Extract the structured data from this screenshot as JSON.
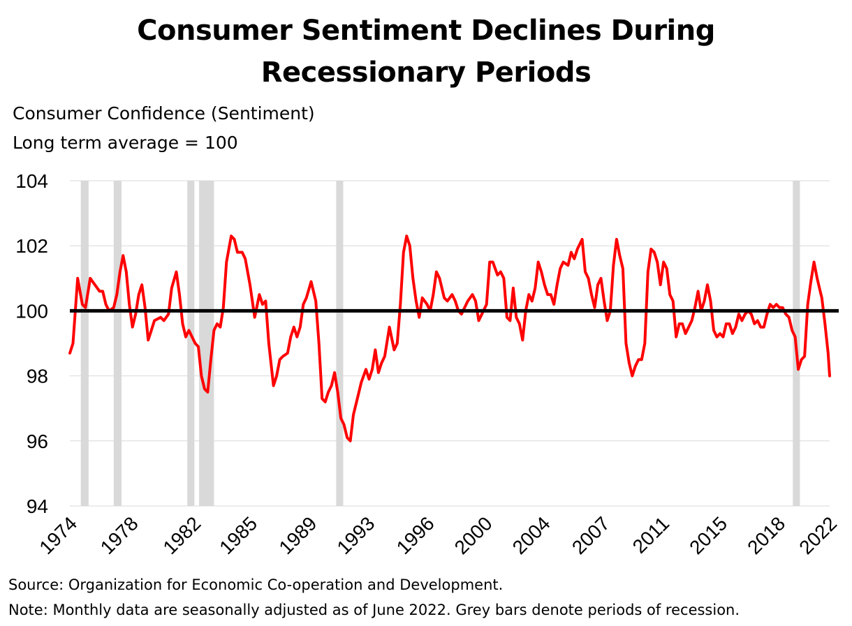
{
  "title_lines": [
    "Consumer Sentiment Declines During",
    "Recessionary Periods"
  ],
  "subtitle_lines": [
    "Consumer Confidence (Sentiment)",
    "Long term average = 100"
  ],
  "source": "Source: Organization for Economic Co-operation and Development.",
  "note": "Note: Monthly data are seasonally adjusted as of June 2022. Grey bars denote periods of recession.",
  "colors": {
    "series": "#ff0000",
    "baseline": "#000000",
    "recession": "#d9d9d9",
    "grid": "#d9d9d9"
  },
  "chart_data": {
    "type": "line",
    "title": "Consumer Sentiment Declines During Recessionary Periods",
    "ylabel": "Consumer Confidence (Sentiment)",
    "xlim": [
      1974.0,
      2022.5
    ],
    "ylim": [
      94,
      104
    ],
    "y_ticks": [
      94,
      96,
      98,
      100,
      102,
      104
    ],
    "x_tick_labels": [
      {
        "label": "1974",
        "x": 1974.0
      },
      {
        "label": "1978",
        "x": 1977.9
      },
      {
        "label": "1982",
        "x": 1981.9
      },
      {
        "label": "1985",
        "x": 1985.5
      },
      {
        "label": "1989",
        "x": 1989.3
      },
      {
        "label": "1993",
        "x": 1993.0
      },
      {
        "label": "1996",
        "x": 1996.8
      },
      {
        "label": "2000",
        "x": 2000.5
      },
      {
        "label": "2004",
        "x": 2004.2
      },
      {
        "label": "2007",
        "x": 2008.0
      },
      {
        "label": "2011",
        "x": 2011.8
      },
      {
        "label": "2015",
        "x": 2015.5
      },
      {
        "label": "2018",
        "x": 2019.2
      },
      {
        "label": "2022",
        "x": 2022.5
      }
    ],
    "grid": true,
    "reference_line": {
      "y": 100
    },
    "recession_periods": [
      [
        1974.7,
        1975.2
      ],
      [
        1976.8,
        1977.3
      ],
      [
        1981.5,
        1981.95
      ],
      [
        1982.25,
        1983.2
      ],
      [
        1991.0,
        1991.45
      ],
      [
        2020.15,
        2020.6
      ]
    ],
    "series": [
      {
        "values": [
          [
            1974.0,
            98.7
          ],
          [
            1974.2,
            99.0
          ],
          [
            1974.5,
            101.0
          ],
          [
            1974.8,
            100.2
          ],
          [
            1975.0,
            100.1
          ],
          [
            1975.3,
            101.0
          ],
          [
            1975.6,
            100.8
          ],
          [
            1975.9,
            100.6
          ],
          [
            1976.1,
            100.6
          ],
          [
            1976.3,
            100.2
          ],
          [
            1976.5,
            100.0
          ],
          [
            1976.8,
            100.1
          ],
          [
            1977.0,
            100.5
          ],
          [
            1977.2,
            101.2
          ],
          [
            1977.4,
            101.7
          ],
          [
            1977.6,
            101.2
          ],
          [
            1977.8,
            100.2
          ],
          [
            1978.0,
            99.5
          ],
          [
            1978.2,
            99.9
          ],
          [
            1978.4,
            100.5
          ],
          [
            1978.6,
            100.8
          ],
          [
            1978.8,
            100.1
          ],
          [
            1979.0,
            99.1
          ],
          [
            1979.2,
            99.4
          ],
          [
            1979.4,
            99.7
          ],
          [
            1979.8,
            99.8
          ],
          [
            1980.0,
            99.7
          ],
          [
            1980.3,
            99.9
          ],
          [
            1980.5,
            100.7
          ],
          [
            1980.8,
            101.2
          ],
          [
            1981.0,
            100.5
          ],
          [
            1981.2,
            99.6
          ],
          [
            1981.4,
            99.2
          ],
          [
            1981.6,
            99.4
          ],
          [
            1981.8,
            99.2
          ],
          [
            1982.0,
            99.0
          ],
          [
            1982.2,
            98.9
          ],
          [
            1982.4,
            98.0
          ],
          [
            1982.6,
            97.6
          ],
          [
            1982.8,
            97.5
          ],
          [
            1983.0,
            98.5
          ],
          [
            1983.2,
            99.4
          ],
          [
            1983.4,
            99.6
          ],
          [
            1983.6,
            99.5
          ],
          [
            1983.8,
            100.1
          ],
          [
            1984.0,
            101.5
          ],
          [
            1984.3,
            102.3
          ],
          [
            1984.5,
            102.2
          ],
          [
            1984.7,
            101.8
          ],
          [
            1985.0,
            101.8
          ],
          [
            1985.2,
            101.6
          ],
          [
            1985.5,
            100.8
          ],
          [
            1985.8,
            99.8
          ],
          [
            1986.1,
            100.5
          ],
          [
            1986.3,
            100.2
          ],
          [
            1986.5,
            100.3
          ],
          [
            1986.7,
            99.0
          ],
          [
            1987.0,
            97.7
          ],
          [
            1987.2,
            98.0
          ],
          [
            1987.4,
            98.5
          ],
          [
            1987.6,
            98.6
          ],
          [
            1987.9,
            98.7
          ],
          [
            1988.1,
            99.2
          ],
          [
            1988.3,
            99.5
          ],
          [
            1988.5,
            99.2
          ],
          [
            1988.7,
            99.5
          ],
          [
            1988.9,
            100.2
          ],
          [
            1989.1,
            100.4
          ],
          [
            1989.4,
            100.9
          ],
          [
            1989.7,
            100.3
          ],
          [
            1989.9,
            99.0
          ],
          [
            1990.1,
            97.3
          ],
          [
            1990.3,
            97.2
          ],
          [
            1990.5,
            97.5
          ],
          [
            1990.7,
            97.7
          ],
          [
            1990.9,
            98.1
          ],
          [
            1991.1,
            97.5
          ],
          [
            1991.3,
            96.7
          ],
          [
            1991.5,
            96.5
          ],
          [
            1991.7,
            96.1
          ],
          [
            1991.9,
            96.0
          ],
          [
            1992.1,
            96.8
          ],
          [
            1992.4,
            97.4
          ],
          [
            1992.6,
            97.8
          ],
          [
            1992.9,
            98.2
          ],
          [
            1993.1,
            97.9
          ],
          [
            1993.3,
            98.2
          ],
          [
            1993.5,
            98.8
          ],
          [
            1993.7,
            98.1
          ],
          [
            1993.9,
            98.4
          ],
          [
            1994.1,
            98.6
          ],
          [
            1994.4,
            99.5
          ],
          [
            1994.7,
            98.8
          ],
          [
            1994.9,
            99.0
          ],
          [
            1995.1,
            100.2
          ],
          [
            1995.3,
            101.8
          ],
          [
            1995.5,
            102.3
          ],
          [
            1995.7,
            102.0
          ],
          [
            1995.9,
            101.0
          ],
          [
            1996.1,
            100.3
          ],
          [
            1996.3,
            99.8
          ],
          [
            1996.5,
            100.4
          ],
          [
            1996.8,
            100.2
          ],
          [
            1997.0,
            100.0
          ],
          [
            1997.2,
            100.5
          ],
          [
            1997.4,
            101.2
          ],
          [
            1997.6,
            101.0
          ],
          [
            1997.9,
            100.4
          ],
          [
            1998.1,
            100.3
          ],
          [
            1998.4,
            100.5
          ],
          [
            1998.6,
            100.3
          ],
          [
            1998.8,
            100.0
          ],
          [
            1999.0,
            99.9
          ],
          [
            1999.2,
            100.1
          ],
          [
            1999.4,
            100.3
          ],
          [
            1999.7,
            100.5
          ],
          [
            1999.9,
            100.3
          ],
          [
            2000.1,
            99.7
          ],
          [
            2000.3,
            99.9
          ],
          [
            2000.6,
            100.2
          ],
          [
            2000.8,
            101.5
          ],
          [
            2001.0,
            101.5
          ],
          [
            2001.3,
            101.1
          ],
          [
            2001.5,
            101.2
          ],
          [
            2001.7,
            101.0
          ],
          [
            2001.9,
            99.8
          ],
          [
            2002.1,
            99.7
          ],
          [
            2002.3,
            100.7
          ],
          [
            2002.5,
            99.8
          ],
          [
            2002.7,
            99.6
          ],
          [
            2002.9,
            99.1
          ],
          [
            2003.1,
            100.0
          ],
          [
            2003.3,
            100.5
          ],
          [
            2003.5,
            100.3
          ],
          [
            2003.7,
            100.7
          ],
          [
            2003.9,
            101.5
          ],
          [
            2004.1,
            101.2
          ],
          [
            2004.3,
            100.8
          ],
          [
            2004.5,
            100.5
          ],
          [
            2004.7,
            100.5
          ],
          [
            2004.9,
            100.2
          ],
          [
            2005.1,
            100.8
          ],
          [
            2005.3,
            101.3
          ],
          [
            2005.5,
            101.5
          ],
          [
            2005.8,
            101.4
          ],
          [
            2006.0,
            101.8
          ],
          [
            2006.2,
            101.6
          ],
          [
            2006.4,
            101.9
          ],
          [
            2006.7,
            102.2
          ],
          [
            2006.9,
            101.2
          ],
          [
            2007.1,
            101.0
          ],
          [
            2007.3,
            100.5
          ],
          [
            2007.5,
            100.1
          ],
          [
            2007.7,
            100.8
          ],
          [
            2007.9,
            101.0
          ],
          [
            2008.1,
            100.3
          ],
          [
            2008.3,
            99.7
          ],
          [
            2008.5,
            100.0
          ],
          [
            2008.7,
            101.4
          ],
          [
            2008.9,
            102.2
          ],
          [
            2009.1,
            101.7
          ],
          [
            2009.3,
            101.3
          ],
          [
            2009.5,
            99.0
          ],
          [
            2009.7,
            98.4
          ],
          [
            2009.9,
            98.0
          ],
          [
            2010.1,
            98.3
          ],
          [
            2010.3,
            98.5
          ],
          [
            2010.5,
            98.5
          ],
          [
            2010.7,
            99.0
          ],
          [
            2010.9,
            101.2
          ],
          [
            2011.1,
            101.9
          ],
          [
            2011.3,
            101.8
          ],
          [
            2011.5,
            101.5
          ],
          [
            2011.7,
            100.8
          ],
          [
            2011.9,
            101.5
          ],
          [
            2012.1,
            101.3
          ],
          [
            2012.3,
            100.5
          ],
          [
            2012.5,
            100.3
          ],
          [
            2012.7,
            99.2
          ],
          [
            2012.9,
            99.6
          ],
          [
            2013.1,
            99.6
          ],
          [
            2013.3,
            99.3
          ],
          [
            2013.5,
            99.5
          ],
          [
            2013.7,
            99.7
          ],
          [
            2013.9,
            100.1
          ],
          [
            2014.1,
            100.6
          ],
          [
            2014.3,
            100.0
          ],
          [
            2014.5,
            100.3
          ],
          [
            2014.7,
            100.8
          ],
          [
            2014.9,
            100.3
          ],
          [
            2015.1,
            99.4
          ],
          [
            2015.3,
            99.2
          ],
          [
            2015.5,
            99.3
          ],
          [
            2015.7,
            99.2
          ],
          [
            2015.9,
            99.6
          ],
          [
            2016.1,
            99.6
          ],
          [
            2016.3,
            99.3
          ],
          [
            2016.5,
            99.5
          ],
          [
            2016.7,
            99.9
          ],
          [
            2016.9,
            99.7
          ],
          [
            2017.1,
            99.9
          ],
          [
            2017.3,
            100.0
          ],
          [
            2017.5,
            99.9
          ],
          [
            2017.7,
            99.6
          ],
          [
            2017.9,
            99.7
          ],
          [
            2018.1,
            99.5
          ],
          [
            2018.3,
            99.5
          ],
          [
            2018.5,
            99.9
          ],
          [
            2018.7,
            100.2
          ],
          [
            2018.9,
            100.1
          ],
          [
            2019.1,
            100.2
          ],
          [
            2019.3,
            100.1
          ],
          [
            2019.5,
            100.1
          ],
          [
            2019.7,
            99.9
          ],
          [
            2019.9,
            99.8
          ],
          [
            2020.1,
            99.4
          ],
          [
            2020.3,
            99.2
          ],
          [
            2020.5,
            98.2
          ],
          [
            2020.7,
            98.5
          ],
          [
            2020.9,
            98.6
          ],
          [
            2021.1,
            100.2
          ],
          [
            2021.3,
            100.9
          ],
          [
            2021.5,
            101.5
          ],
          [
            2021.7,
            101.0
          ],
          [
            2021.9,
            100.6
          ],
          [
            2022.0,
            100.4
          ],
          [
            2022.2,
            99.6
          ],
          [
            2022.4,
            98.7
          ],
          [
            2022.5,
            98.0
          ]
        ]
      }
    ]
  }
}
